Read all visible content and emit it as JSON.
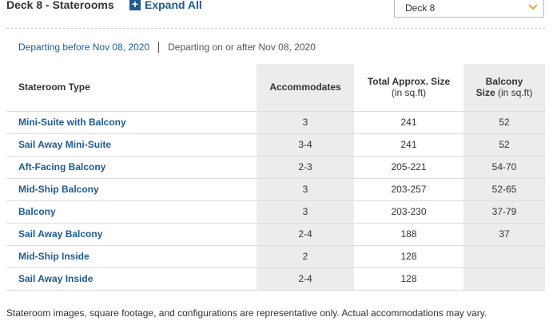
{
  "header": {
    "deck_title": "Deck 8 - Staterooms",
    "expand_label": "Expand All",
    "deck_select_value": "Deck 8"
  },
  "dates": {
    "before": "Departing before Nov 08, 2020",
    "after": "Departing on or after Nov 08, 2020"
  },
  "table": {
    "headers": {
      "type": "Stateroom Type",
      "accommodates": "Accommodates",
      "size_line1": "Total Approx. Size",
      "size_line2": "(in sq.ft)",
      "balcony_line1": "Balcony",
      "balcony_line2_bold": "Size",
      "balcony_line2_rest": "(in sq.ft)"
    },
    "rows": [
      {
        "type": "Mini-Suite with Balcony",
        "accommodates": "3",
        "size": "241",
        "balcony": "52"
      },
      {
        "type": "Sail Away Mini-Suite",
        "accommodates": "3-4",
        "size": "241",
        "balcony": "52"
      },
      {
        "type": "Aft-Facing Balcony",
        "accommodates": "2-3",
        "size": "205-221",
        "balcony": "54-70"
      },
      {
        "type": "Mid-Ship Balcony",
        "accommodates": "3",
        "size": "203-257",
        "balcony": "52-65"
      },
      {
        "type": "Balcony",
        "accommodates": "3",
        "size": "203-230",
        "balcony": "37-79"
      },
      {
        "type": "Sail Away Balcony",
        "accommodates": "2-4",
        "size": "188",
        "balcony": "37"
      },
      {
        "type": "Mid-Ship Inside",
        "accommodates": "2",
        "size": "128",
        "balcony": ""
      },
      {
        "type": "Sail Away Inside",
        "accommodates": "2-4",
        "size": "128",
        "balcony": ""
      }
    ]
  },
  "footnote": "Stateroom images, square footage, and configurations are representative only. Actual accommodations may vary.",
  "colors": {
    "link_blue": "#1d5b92",
    "shade_gray": "#ececec",
    "chevron_orange": "#f0a33a"
  }
}
